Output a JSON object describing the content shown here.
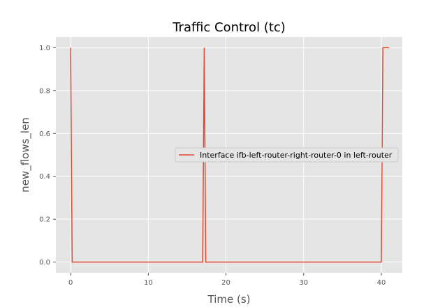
{
  "chart_data": {
    "type": "line",
    "title": "Traffic Control (tc)",
    "xlabel": "Time (s)",
    "ylabel": "new_flows_len",
    "xlim": [
      -1.9,
      42.7
    ],
    "ylim": [
      -0.05,
      1.05
    ],
    "xticks": [
      0,
      10,
      20,
      30,
      40
    ],
    "yticks": [
      0.0,
      0.2,
      0.4,
      0.6,
      0.8,
      1.0
    ],
    "xtick_labels": [
      "0",
      "10",
      "20",
      "30",
      "40"
    ],
    "ytick_labels": [
      "0.0",
      "0.2",
      "0.4",
      "0.6",
      "0.8",
      "1.0"
    ],
    "grid": true,
    "legend_position": "center-right",
    "background": "#e5e5e5",
    "series": [
      {
        "name": "Interface ifb-left-router-right-router-0 in left-router",
        "color": "#e24a33",
        "x": [
          0.0,
          0.2,
          17.0,
          17.2,
          17.4,
          40.0,
          40.2,
          41.0
        ],
        "y": [
          1.0,
          0.0,
          0.0,
          1.0,
          0.0,
          0.0,
          1.0,
          1.0
        ]
      }
    ]
  }
}
